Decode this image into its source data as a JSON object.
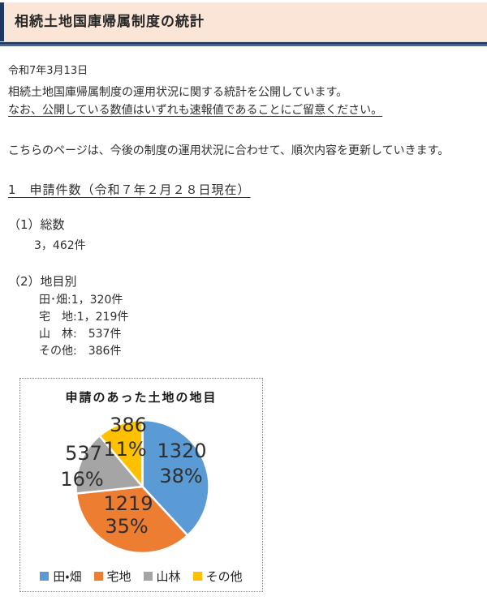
{
  "page": {
    "title": "相続土地国庫帰属制度の統計",
    "date": "令和7年3月13日",
    "intro_line1": "相続土地国庫帰属制度の運用状況に関する統計を公開しています。",
    "intro_line2": "なお、公開している数値はいずれも速報値であることにご留意ください。",
    "update_note": "こちらのページは、今後の制度の運用状況に合わせて、順次内容を更新していきます。",
    "section1": {
      "heading": "1　申請件数（令和７年２月２８日現在）",
      "total_label": "（1）総数",
      "total_value": "3，462件",
      "land_type_label": "（2）地目別",
      "land_type_items": [
        "田･畑:1，320件",
        "宅　地:1，219件",
        "山　林:　537件",
        "その他:　386件"
      ]
    }
  },
  "chart_data": {
    "type": "pie",
    "title": "申請のあった土地の地目",
    "total": 3462,
    "start_angle_deg": 0,
    "direction": "clockwise",
    "legend_position": "bottom",
    "slices": [
      {
        "name": "田・畑",
        "value": 1320,
        "pct": 38,
        "value_label": "1320",
        "pct_label": "38%",
        "color": "#5B9BD5",
        "label_pos": {
          "value": [
            199,
            89
          ],
          "pct": [
            198,
            120
          ]
        }
      },
      {
        "name": "宅地",
        "value": 1219,
        "pct": 35,
        "value_label": "1219",
        "pct_label": "35%",
        "color": "#ED7D31",
        "label_pos": {
          "value": [
            133,
            154
          ],
          "pct": [
            131,
            182
          ]
        }
      },
      {
        "name": "山林",
        "value": 537,
        "pct": 16,
        "value_label": "537",
        "pct_label": "16%",
        "color": "#A5A5A5",
        "label_pos": {
          "value": [
            78,
            92
          ],
          "pct": [
            76,
            124
          ]
        }
      },
      {
        "name": "その他",
        "value": 386,
        "pct": 11,
        "value_label": "386",
        "pct_label": "11%",
        "color": "#FFC000",
        "label_pos": {
          "value": [
            133,
            57
          ],
          "pct": [
            129,
            87
          ]
        }
      }
    ],
    "label_color": "#2e2e2e",
    "slice_border_color": "#ffffff"
  }
}
